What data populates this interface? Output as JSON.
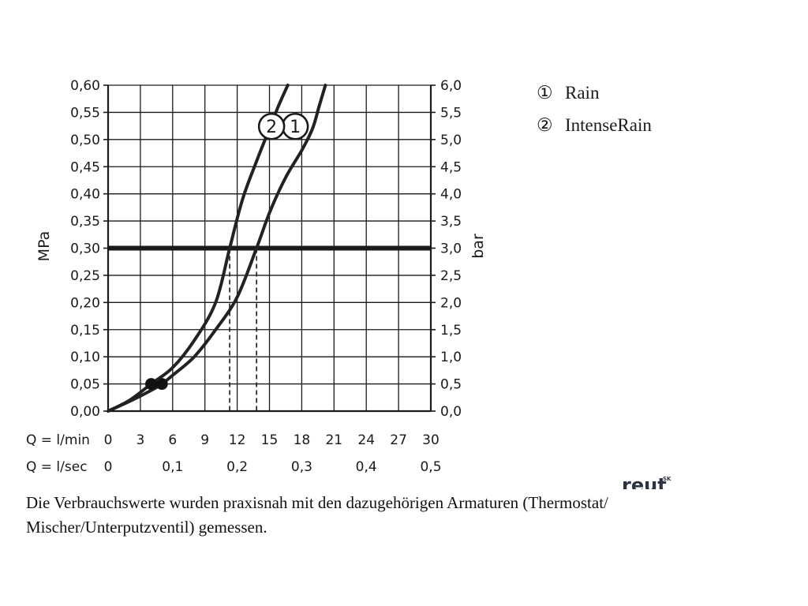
{
  "chart_data": {
    "type": "line",
    "xlabel_rows": [
      {
        "prefix": "Q = l/min",
        "ticks": [
          "0",
          "3",
          "6",
          "9",
          "12",
          "15",
          "18",
          "21",
          "24",
          "27",
          "30"
        ]
      },
      {
        "prefix": "Q = l/sec",
        "ticks": [
          "0",
          "0,1",
          "0,2",
          "0,3",
          "0,4",
          "0,5"
        ]
      }
    ],
    "ylabel_left": "MPa",
    "ylabel_right": "bar",
    "yticks_left": [
      "0,00",
      "0,05",
      "0,10",
      "0,15",
      "0,20",
      "0,25",
      "0,30",
      "0,35",
      "0,40",
      "0,45",
      "0,50",
      "0,55",
      "0,60"
    ],
    "yticks_right": [
      "0,0",
      "0,5",
      "1,0",
      "1,5",
      "2,0",
      "2,5",
      "3,0",
      "3,5",
      "4,0",
      "4,5",
      "5,0",
      "5,5",
      "6,0"
    ],
    "xlim": [
      0,
      30
    ],
    "ylim": [
      0,
      0.6
    ],
    "grid": true,
    "reference_line": {
      "y": 0.3
    },
    "series": [
      {
        "name": "Rain",
        "marker": "1",
        "color": "#222222",
        "points": [
          [
            0,
            0
          ],
          [
            2,
            0.018
          ],
          [
            4,
            0.038
          ],
          [
            5,
            0.05
          ],
          [
            6,
            0.066
          ],
          [
            8,
            0.1
          ],
          [
            10,
            0.15
          ],
          [
            12,
            0.21
          ],
          [
            13.8,
            0.3
          ],
          [
            15,
            0.365
          ],
          [
            16.5,
            0.43
          ],
          [
            18,
            0.48
          ],
          [
            19,
            0.52
          ],
          [
            19.6,
            0.56
          ],
          [
            20.2,
            0.6
          ]
        ],
        "dot": [
          5,
          0.05
        ],
        "reading_at_reference": 13.8
      },
      {
        "name": "IntenseRain",
        "marker": "2",
        "color": "#222222",
        "points": [
          [
            0,
            0
          ],
          [
            2,
            0.02
          ],
          [
            4,
            0.05
          ],
          [
            6,
            0.08
          ],
          [
            8,
            0.13
          ],
          [
            10,
            0.2
          ],
          [
            11.3,
            0.3
          ],
          [
            12.5,
            0.39
          ],
          [
            13.8,
            0.46
          ],
          [
            14.8,
            0.51
          ],
          [
            15.8,
            0.56
          ],
          [
            16.7,
            0.6
          ]
        ],
        "dot": [
          4,
          0.05
        ],
        "reading_at_reference": 11.3
      }
    ],
    "legend": [
      {
        "symbol": "①",
        "label": "Rain"
      },
      {
        "symbol": "②",
        "label": "IntenseRain"
      }
    ]
  },
  "logo": {
    "text": "reut",
    "superscript": "SK"
  },
  "footnote": {
    "line1": "Die Verbrauchswerte wurden praxisnah mit den dazugehörigen Armaturen (Thermostat/",
    "line2": "Mischer/Unterputzventil) gemessen."
  },
  "colors": {
    "ink": "#1a1a1a",
    "grid": "#1a1a1a"
  }
}
